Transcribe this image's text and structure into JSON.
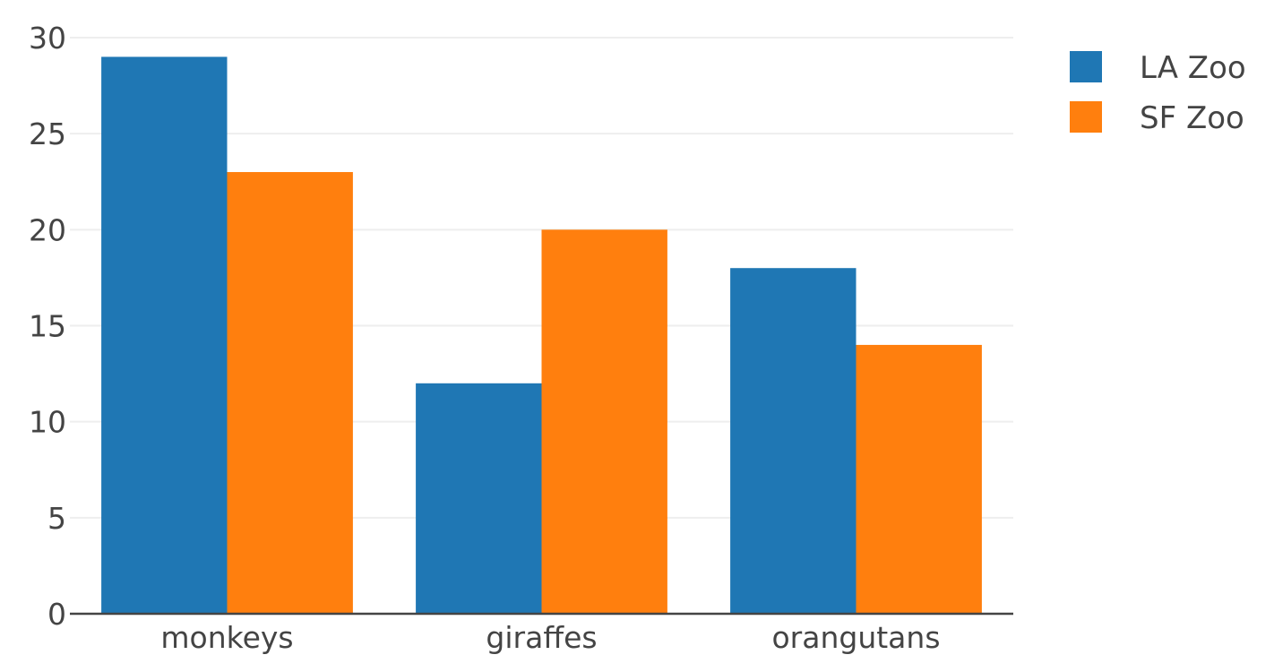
{
  "chart_data": {
    "type": "bar",
    "categories": [
      "monkeys",
      "giraffes",
      "orangutans"
    ],
    "series": [
      {
        "name": "LA Zoo",
        "values": [
          29,
          12,
          18
        ],
        "color": "#1f77b4"
      },
      {
        "name": "SF Zoo",
        "values": [
          23,
          20,
          14
        ],
        "color": "#ff7f0e"
      }
    ],
    "ylim": [
      0,
      30
    ],
    "yticks": [
      0,
      5,
      10,
      15,
      20,
      25,
      30
    ],
    "grid": true,
    "legend_position": "top-right",
    "title": "",
    "xlabel": "",
    "ylabel": ""
  }
}
